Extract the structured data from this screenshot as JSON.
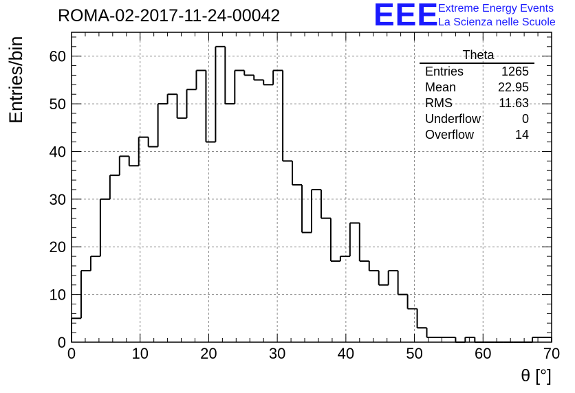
{
  "run_title": "ROMA-02-2017-11-24-00042",
  "logo": {
    "mark": "EEE",
    "line1": "Extreme Energy Events",
    "line2": "La Scienza nelle Scuole",
    "color": "#1a1aff"
  },
  "stats": {
    "title": "Theta",
    "rows": [
      {
        "label": "Entries",
        "value": "1265"
      },
      {
        "label": "Mean",
        "value": "22.95"
      },
      {
        "label": "RMS",
        "value": "11.63"
      },
      {
        "label": "Underflow",
        "value": "0"
      },
      {
        "label": "Overflow",
        "value": "14"
      }
    ]
  },
  "chart_data": {
    "type": "bar",
    "style": "step-histogram",
    "title": "ROMA-02-2017-11-24-00042",
    "xlabel": "θ [°]",
    "ylabel": "Entries/bin",
    "xlim": [
      0,
      70
    ],
    "ylim": [
      0,
      65
    ],
    "grid": true,
    "bin_edges_start": 0,
    "bin_width": 1.4,
    "values": [
      5,
      15,
      18,
      30,
      35,
      39,
      37,
      43,
      41,
      50,
      52,
      47,
      53,
      57,
      42,
      62,
      50,
      57,
      56,
      55,
      54,
      57,
      38,
      33,
      23,
      32,
      26,
      17,
      18,
      25,
      17,
      15,
      12,
      15,
      10,
      7,
      3,
      1,
      1,
      1,
      0,
      1,
      0,
      0,
      0,
      0,
      0,
      0,
      1,
      1
    ],
    "xticks": [
      "0",
      "10",
      "20",
      "30",
      "40",
      "50",
      "60",
      "70"
    ],
    "yticks": [
      "0",
      "10",
      "20",
      "30",
      "40",
      "50",
      "60"
    ],
    "line_color": "#000000"
  }
}
